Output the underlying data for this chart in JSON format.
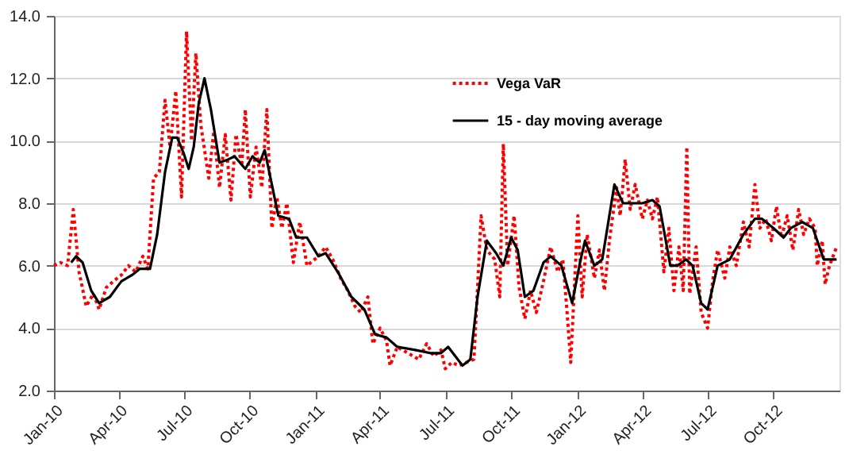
{
  "chart_data": {
    "type": "line",
    "xlim": [
      "2010-01-01",
      "2013-01-01"
    ],
    "xticks": [
      {
        "value": "2010-01-01",
        "label": "Jan-10"
      },
      {
        "value": "2010-04-01",
        "label": "Apr-10"
      },
      {
        "value": "2010-07-01",
        "label": "Jul-10"
      },
      {
        "value": "2010-10-01",
        "label": "Oct-10"
      },
      {
        "value": "2011-01-01",
        "label": "Jan-11"
      },
      {
        "value": "2011-04-01",
        "label": "Apr-11"
      },
      {
        "value": "2011-07-01",
        "label": "Jul-11"
      },
      {
        "value": "2011-10-01",
        "label": "Oct-11"
      },
      {
        "value": "2012-01-01",
        "label": "Jan-12"
      },
      {
        "value": "2012-04-01",
        "label": "Apr-12"
      },
      {
        "value": "2012-07-01",
        "label": "Jul-12"
      },
      {
        "value": "2012-10-01",
        "label": "Oct-12"
      }
    ],
    "ylim": [
      2,
      14
    ],
    "yticks": [
      {
        "value": 2,
        "label": "2.0"
      },
      {
        "value": 4,
        "label": "4.0"
      },
      {
        "value": 6,
        "label": "6.0"
      },
      {
        "value": 8,
        "label": "8.0"
      },
      {
        "value": 10,
        "label": "10.0"
      },
      {
        "value": 12,
        "label": "12.0"
      },
      {
        "value": 14,
        "label": "14.0"
      }
    ],
    "grid": "y",
    "legend": "top right",
    "marker": "none",
    "series": [
      {
        "name": "Vega VaR",
        "color": "#ff0000",
        "line_style": "dotted",
        "x": [
          "2010-01-01",
          "2010-01-10",
          "2010-01-20",
          "2010-01-28",
          "2010-02-05",
          "2010-02-15",
          "2010-02-25",
          "2010-03-05",
          "2010-03-15",
          "2010-03-25",
          "2010-04-05",
          "2010-04-15",
          "2010-04-25",
          "2010-05-05",
          "2010-05-12",
          "2010-05-20",
          "2010-05-28",
          "2010-06-05",
          "2010-06-12",
          "2010-06-20",
          "2010-06-28",
          "2010-07-05",
          "2010-07-12",
          "2010-07-18",
          "2010-07-25",
          "2010-08-05",
          "2010-08-12",
          "2010-08-20",
          "2010-08-28",
          "2010-09-05",
          "2010-09-12",
          "2010-09-20",
          "2010-09-25",
          "2010-10-02",
          "2010-10-10",
          "2010-10-18",
          "2010-10-25",
          "2010-11-01",
          "2010-11-08",
          "2010-11-15",
          "2010-11-22",
          "2010-12-01",
          "2010-12-10",
          "2010-12-20",
          "2011-01-05",
          "2011-01-15",
          "2011-01-25",
          "2011-02-05",
          "2011-02-15",
          "2011-02-25",
          "2011-03-05",
          "2011-03-15",
          "2011-03-22",
          "2011-04-01",
          "2011-04-10",
          "2011-04-15",
          "2011-04-25",
          "2011-05-10",
          "2011-05-25",
          "2011-06-05",
          "2011-06-15",
          "2011-06-25",
          "2011-07-01",
          "2011-07-10",
          "2011-07-20",
          "2011-08-10",
          "2011-08-20",
          "2011-08-28",
          "2011-09-08",
          "2011-09-15",
          "2011-09-20",
          "2011-09-26",
          "2011-10-05",
          "2011-10-12",
          "2011-10-20",
          "2011-10-28",
          "2011-11-05",
          "2011-11-15",
          "2011-11-25",
          "2011-12-05",
          "2011-12-12",
          "2011-12-18",
          "2011-12-23",
          "2012-01-02",
          "2012-01-08",
          "2012-01-15",
          "2012-01-25",
          "2012-02-01",
          "2012-02-08",
          "2012-02-15",
          "2012-02-25",
          "2012-03-01",
          "2012-03-08",
          "2012-03-15",
          "2012-03-22",
          "2012-04-01",
          "2012-04-08",
          "2012-04-15",
          "2012-04-22",
          "2012-05-01",
          "2012-05-08",
          "2012-05-15",
          "2012-05-22",
          "2012-05-28",
          "2012-06-02",
          "2012-06-06",
          "2012-06-15",
          "2012-06-22",
          "2012-07-01",
          "2012-07-08",
          "2012-07-15",
          "2012-07-25",
          "2012-08-01",
          "2012-08-10",
          "2012-08-20",
          "2012-08-28",
          "2012-09-05",
          "2012-09-12",
          "2012-09-20",
          "2012-09-28",
          "2012-10-05",
          "2012-10-12",
          "2012-10-20",
          "2012-10-28",
          "2012-11-05",
          "2012-11-12",
          "2012-11-20",
          "2012-11-28",
          "2012-12-01",
          "2012-12-08",
          "2012-12-12",
          "2012-12-18",
          "2012-12-28"
        ],
        "values": [
          6.0,
          6.1,
          6.0,
          7.8,
          5.8,
          4.7,
          5.1,
          4.6,
          5.3,
          5.5,
          5.7,
          6.0,
          5.8,
          6.3,
          5.9,
          8.8,
          9.0,
          11.3,
          9.8,
          11.6,
          8.2,
          13.5,
          10.0,
          12.8,
          10.5,
          8.8,
          10.3,
          8.5,
          10.2,
          8.1,
          10.2,
          9.2,
          11.0,
          8.2,
          9.8,
          8.5,
          11.0,
          7.2,
          8.2,
          7.2,
          8.0,
          6.1,
          7.4,
          6.0,
          6.3,
          6.6,
          6.2,
          5.6,
          5.2,
          4.7,
          4.5,
          5.0,
          3.5,
          4.0,
          3.6,
          2.8,
          3.4,
          3.2,
          3.0,
          3.5,
          3.1,
          3.3,
          2.7,
          2.9,
          2.8,
          3.0,
          7.6,
          6.5,
          6.2,
          5.0,
          9.9,
          6.0,
          7.6,
          5.3,
          4.3,
          5.2,
          4.5,
          5.5,
          6.6,
          5.8,
          6.2,
          4.5,
          2.9,
          7.6,
          5.0,
          7.0,
          5.6,
          6.5,
          5.2,
          6.8,
          8.5,
          7.6,
          9.4,
          7.8,
          8.6,
          7.5,
          8.1,
          7.5,
          8.2,
          5.8,
          7.2,
          5.2,
          6.6,
          5.2,
          9.8,
          5.1,
          6.6,
          4.5,
          4.0,
          5.5,
          6.5,
          5.6,
          6.6,
          6.0,
          7.4,
          6.6,
          8.6,
          7.2,
          7.5,
          6.8,
          7.9,
          6.9,
          7.6,
          6.5,
          7.8,
          7.0,
          7.5,
          7.2,
          6.0,
          6.8,
          5.4,
          6.0,
          6.6
        ]
      },
      {
        "name": "15 - day moving average",
        "color": "#000000",
        "line_style": "solid",
        "x": [
          "2010-01-25",
          "2010-02-01",
          "2010-02-10",
          "2010-02-22",
          "2010-03-05",
          "2010-03-20",
          "2010-04-05",
          "2010-04-20",
          "2010-05-01",
          "2010-05-15",
          "2010-05-25",
          "2010-06-05",
          "2010-06-15",
          "2010-06-22",
          "2010-07-01",
          "2010-07-08",
          "2010-07-15",
          "2010-07-22",
          "2010-07-30",
          "2010-08-08",
          "2010-08-20",
          "2010-09-01",
          "2010-09-10",
          "2010-09-25",
          "2010-10-05",
          "2010-10-15",
          "2010-10-22",
          "2010-11-01",
          "2010-11-10",
          "2010-11-25",
          "2010-12-05",
          "2010-12-20",
          "2011-01-05",
          "2011-01-15",
          "2011-02-01",
          "2011-02-20",
          "2011-03-10",
          "2011-03-25",
          "2011-04-10",
          "2011-04-25",
          "2011-05-20",
          "2011-06-10",
          "2011-06-25",
          "2011-07-05",
          "2011-07-15",
          "2011-07-25",
          "2011-08-05",
          "2011-08-15",
          "2011-08-28",
          "2011-09-10",
          "2011-09-20",
          "2011-10-01",
          "2011-10-10",
          "2011-10-20",
          "2011-11-01",
          "2011-11-15",
          "2011-11-25",
          "2011-12-10",
          "2011-12-25",
          "2012-01-05",
          "2012-01-12",
          "2012-01-25",
          "2012-02-05",
          "2012-02-22",
          "2012-03-05",
          "2012-03-20",
          "2012-04-01",
          "2012-04-15",
          "2012-04-25",
          "2012-05-10",
          "2012-05-20",
          "2012-06-01",
          "2012-06-10",
          "2012-06-22",
          "2012-07-01",
          "2012-07-15",
          "2012-08-01",
          "2012-08-20",
          "2012-09-05",
          "2012-09-15",
          "2012-10-01",
          "2012-10-15",
          "2012-10-25",
          "2012-11-10",
          "2012-11-25",
          "2012-12-10",
          "2012-12-28"
        ],
        "values": [
          6.1,
          6.3,
          6.1,
          5.2,
          4.8,
          5.0,
          5.5,
          5.7,
          5.9,
          5.9,
          7.0,
          9.0,
          10.1,
          10.1,
          9.6,
          9.1,
          9.8,
          11.2,
          12.0,
          11.0,
          9.3,
          9.4,
          9.5,
          9.1,
          9.5,
          9.3,
          9.7,
          8.6,
          7.6,
          7.5,
          6.9,
          6.9,
          6.3,
          6.4,
          5.8,
          5.0,
          4.6,
          3.8,
          3.7,
          3.4,
          3.3,
          3.2,
          3.2,
          3.4,
          3.1,
          2.8,
          3.0,
          5.0,
          6.8,
          6.4,
          6.0,
          6.9,
          6.5,
          5.0,
          5.2,
          6.1,
          6.3,
          6.0,
          4.8,
          6.1,
          6.8,
          6.0,
          6.2,
          8.6,
          8.0,
          8.0,
          8.0,
          8.1,
          7.9,
          6.0,
          6.0,
          6.2,
          6.0,
          4.8,
          4.6,
          6.0,
          6.2,
          7.0,
          7.5,
          7.5,
          7.2,
          6.9,
          7.2,
          7.4,
          7.2,
          6.2,
          6.2
        ]
      }
    ]
  }
}
